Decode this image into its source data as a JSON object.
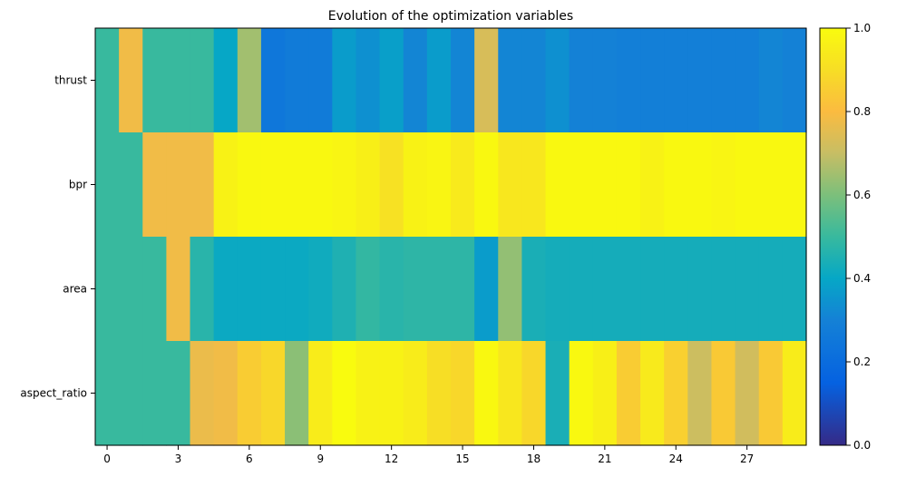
{
  "chart_data": {
    "type": "heatmap",
    "title": "Evolution of the optimization variables",
    "xlabel": "",
    "ylabel": "",
    "rows": [
      "thrust",
      "bpr",
      "area",
      "aspect_ratio"
    ],
    "x_ticks": [
      0,
      3,
      6,
      9,
      12,
      15,
      18,
      21,
      24,
      27
    ],
    "n_iterations": 30,
    "colorbar": {
      "min": 0.0,
      "max": 1.0,
      "ticks": [
        "0.0",
        "0.2",
        "0.4",
        "0.6",
        "0.8",
        "1.0"
      ],
      "colormap": "parula"
    },
    "values": [
      [
        0.5,
        0.78,
        0.5,
        0.5,
        0.5,
        0.4,
        0.65,
        0.25,
        0.27,
        0.27,
        0.37,
        0.34,
        0.38,
        0.31,
        0.37,
        0.31,
        0.73,
        0.31,
        0.31,
        0.34,
        0.3,
        0.3,
        0.29,
        0.29,
        0.29,
        0.29,
        0.29,
        0.29,
        0.31,
        0.3
      ],
      [
        0.5,
        0.5,
        0.78,
        0.78,
        0.78,
        0.97,
        0.99,
        0.99,
        0.99,
        0.99,
        0.98,
        0.96,
        0.91,
        0.97,
        0.98,
        0.94,
        0.99,
        0.93,
        0.93,
        0.99,
        0.99,
        0.99,
        0.99,
        0.97,
        0.99,
        0.99,
        0.98,
        0.99,
        0.99,
        0.99
      ],
      [
        0.5,
        0.5,
        0.5,
        0.78,
        0.47,
        0.41,
        0.41,
        0.41,
        0.41,
        0.42,
        0.45,
        0.49,
        0.47,
        0.48,
        0.48,
        0.48,
        0.37,
        0.63,
        0.44,
        0.43,
        0.43,
        0.43,
        0.43,
        0.43,
        0.43,
        0.43,
        0.43,
        0.43,
        0.43,
        0.43
      ],
      [
        0.5,
        0.5,
        0.5,
        0.5,
        0.77,
        0.78,
        0.85,
        0.88,
        0.62,
        0.95,
        1.0,
        0.97,
        0.97,
        0.95,
        0.9,
        0.88,
        0.99,
        0.93,
        0.88,
        0.44,
        0.99,
        0.96,
        0.85,
        0.94,
        0.86,
        0.71,
        0.84,
        0.72,
        0.84,
        0.95
      ]
    ]
  }
}
